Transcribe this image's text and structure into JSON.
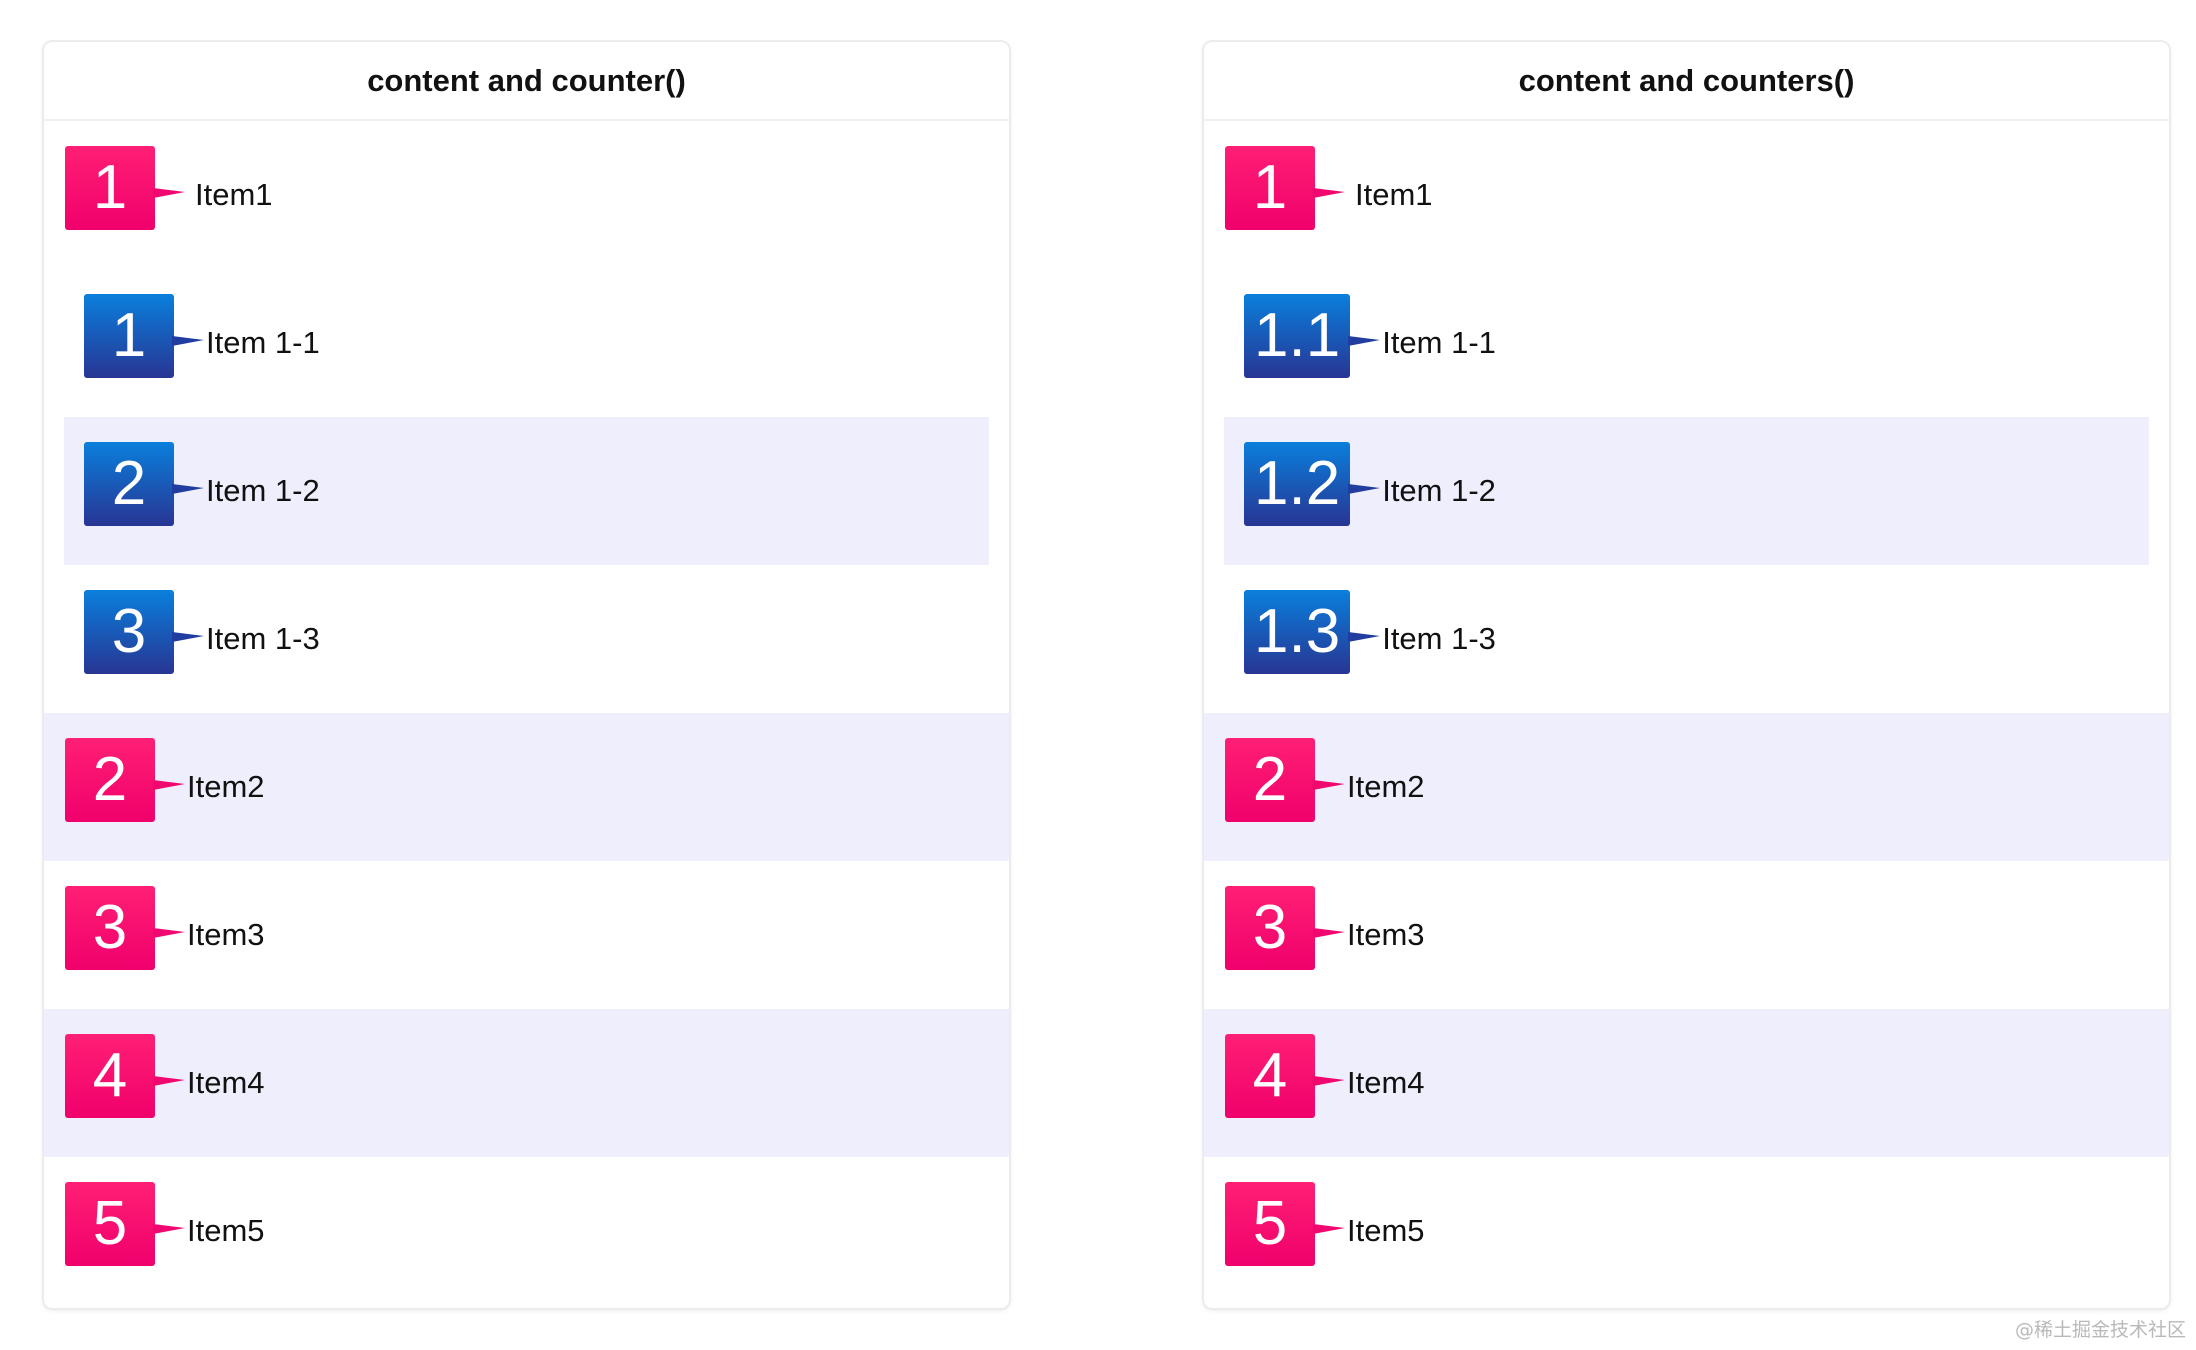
{
  "colors": {
    "pink_badge": "#f0006c",
    "blue_badge_top": "#0a7fdc",
    "blue_badge_bottom": "#283593",
    "alt_row": "#eeeefd"
  },
  "panels": [
    {
      "title": "content and counter()",
      "items": [
        {
          "counter": "1",
          "label": "Item1",
          "children": [
            {
              "counter": "1",
              "label": "Item 1-1"
            },
            {
              "counter": "2",
              "label": "Item 1-2"
            },
            {
              "counter": "3",
              "label": "Item 1-3"
            }
          ]
        },
        {
          "counter": "2",
          "label": "Item2"
        },
        {
          "counter": "3",
          "label": "Item3"
        },
        {
          "counter": "4",
          "label": "Item4"
        },
        {
          "counter": "5",
          "label": "Item5"
        }
      ]
    },
    {
      "title": "content and counters()",
      "items": [
        {
          "counter": "1",
          "label": "Item1",
          "children": [
            {
              "counter": "1.1",
              "label": "Item 1-1"
            },
            {
              "counter": "1.2",
              "label": "Item 1-2"
            },
            {
              "counter": "1.3",
              "label": "Item 1-3"
            }
          ]
        },
        {
          "counter": "2",
          "label": "Item2"
        },
        {
          "counter": "3",
          "label": "Item3"
        },
        {
          "counter": "4",
          "label": "Item4"
        },
        {
          "counter": "5",
          "label": "Item5"
        }
      ]
    }
  ],
  "watermark": "@稀土掘金技术社区"
}
